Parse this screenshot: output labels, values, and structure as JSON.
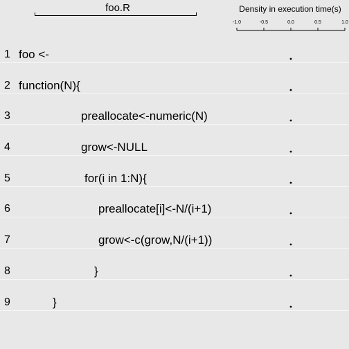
{
  "file_title": "foo.R",
  "code_lines": [
    {
      "num": "1",
      "text": "foo <-"
    },
    {
      "num": "2",
      "text": "function(N){"
    },
    {
      "num": "3",
      "text": "preallocate<-numeric(N)"
    },
    {
      "num": "4",
      "text": "grow<-NULL"
    },
    {
      "num": "5",
      "text": "for(i in 1:N){"
    },
    {
      "num": "6",
      "text": "preallocate[i]<-N/(i+1)"
    },
    {
      "num": "7",
      "text": "grow<-c(grow,N/(i+1))"
    },
    {
      "num": "8",
      "text": "}"
    },
    {
      "num": "9",
      "text": "}"
    }
  ],
  "chart_data": {
    "type": "scatter",
    "title": "Density in execution time(s)",
    "xlim": [
      -1.0,
      1.0
    ],
    "x_ticks": [
      -1.0,
      -0.5,
      0.0,
      0.5,
      1.0
    ],
    "x_tick_labels": [
      "-1.0",
      "-0.5",
      "0.0",
      "0.5",
      "1.0"
    ],
    "points": [
      {
        "line": 1,
        "x": 0.0
      },
      {
        "line": 2,
        "x": 0.0
      },
      {
        "line": 3,
        "x": 0.0
      },
      {
        "line": 4,
        "x": 0.0
      },
      {
        "line": 5,
        "x": 0.0
      },
      {
        "line": 6,
        "x": 0.0
      },
      {
        "line": 7,
        "x": 0.0
      },
      {
        "line": 8,
        "x": 0.0
      },
      {
        "line": 9,
        "x": 0.0
      }
    ]
  }
}
